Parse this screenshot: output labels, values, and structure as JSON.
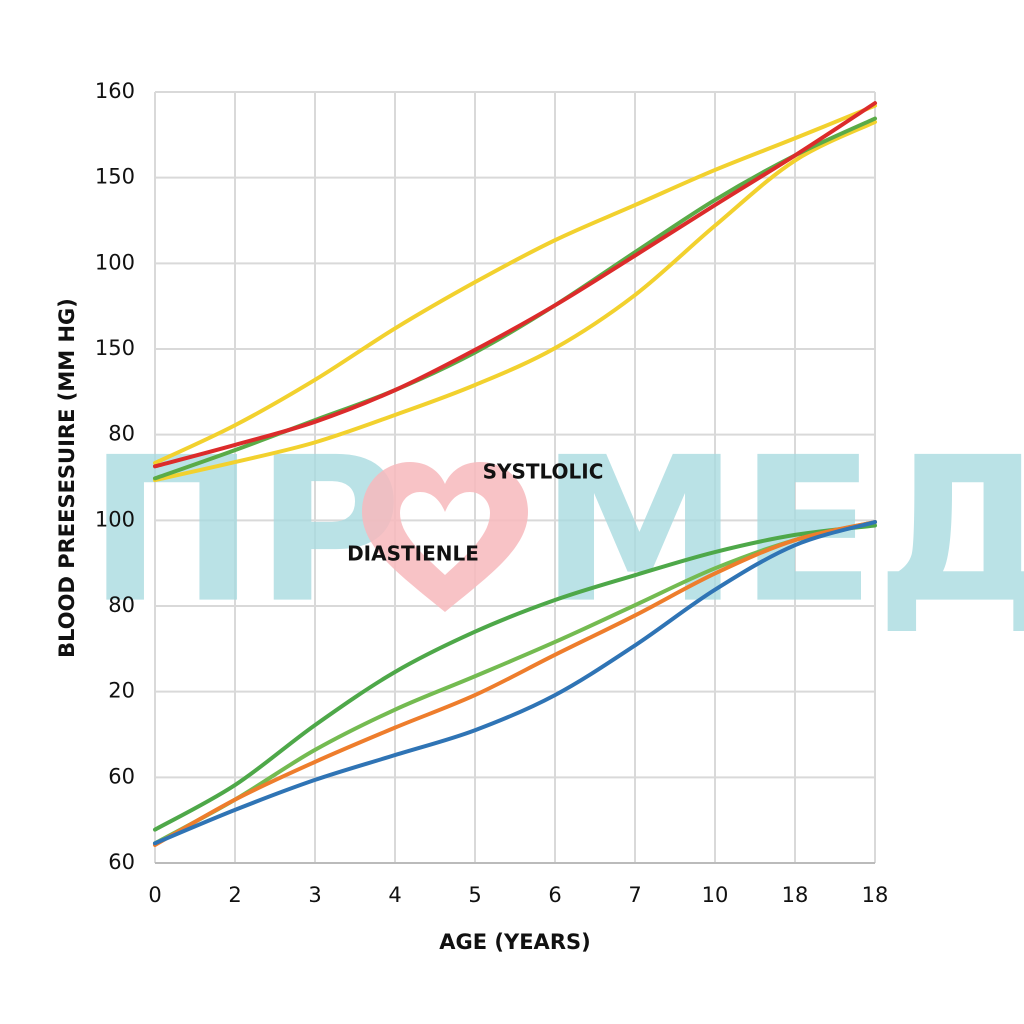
{
  "chart_data": {
    "type": "line",
    "xlabel": "AGE (YEARS)",
    "ylabel": "BLOOD PREESESUIRE (MM HG)",
    "annotations": [
      "SYSTLOLIC",
      "DIASTIENLE"
    ],
    "watermark": [
      "ПР",
      "МЕД"
    ],
    "x": [
      0,
      1,
      2,
      3,
      4,
      5,
      6,
      7,
      8,
      9
    ],
    "xlim": [
      0,
      9
    ],
    "xticks": [
      {
        "value": 0,
        "label": "0"
      },
      {
        "value": 1,
        "label": "2"
      },
      {
        "value": 2,
        "label": "3"
      },
      {
        "value": 3,
        "label": "4"
      },
      {
        "value": 4,
        "label": "5"
      },
      {
        "value": 5,
        "label": "6"
      },
      {
        "value": 6,
        "label": "7"
      },
      {
        "value": 7,
        "label": "10"
      },
      {
        "value": 8,
        "label": "18"
      },
      {
        "value": 9,
        "label": "18"
      }
    ],
    "ylim": [
      0,
      9
    ],
    "yticks": [
      {
        "value": 0,
        "label": "60"
      },
      {
        "value": 1,
        "label": "60"
      },
      {
        "value": 2,
        "label": "20"
      },
      {
        "value": 3,
        "label": "80"
      },
      {
        "value": 4,
        "label": "100"
      },
      {
        "value": 5,
        "label": "80"
      },
      {
        "value": 6,
        "label": "150"
      },
      {
        "value": 7,
        "label": "100"
      },
      {
        "value": 8,
        "label": "150"
      },
      {
        "value": 9,
        "label": "160"
      }
    ],
    "grid": true,
    "series": [
      {
        "color": "#f2d12e",
        "values": [
          4.67,
          5.11,
          5.64,
          6.24,
          6.78,
          7.27,
          7.68,
          8.09,
          8.46,
          8.84
        ]
      },
      {
        "color": "#f2d12e",
        "values": [
          4.47,
          4.68,
          4.91,
          5.23,
          5.58,
          6.01,
          6.63,
          7.44,
          8.2,
          8.65
        ]
      },
      {
        "color": "#5aab47",
        "values": [
          4.49,
          4.82,
          5.17,
          5.52,
          5.96,
          6.51,
          7.13,
          7.74,
          8.26,
          8.69
        ]
      },
      {
        "color": "#dc2b2b",
        "values": [
          4.63,
          4.88,
          5.15,
          5.52,
          5.99,
          6.51,
          7.09,
          7.68,
          8.26,
          8.87
        ]
      },
      {
        "color": "#4ea849",
        "values": [
          0.39,
          0.91,
          1.61,
          2.23,
          2.7,
          3.07,
          3.36,
          3.63,
          3.83,
          3.94
        ]
      },
      {
        "color": "#74bb51",
        "values": [
          0.23,
          0.74,
          1.32,
          1.79,
          2.18,
          2.58,
          3.01,
          3.44,
          3.77,
          3.98
        ]
      },
      {
        "color": "#ee7d2c",
        "values": [
          0.21,
          0.74,
          1.18,
          1.58,
          1.96,
          2.43,
          2.89,
          3.38,
          3.77,
          3.98
        ]
      },
      {
        "color": "#2f74b5",
        "values": [
          0.23,
          0.62,
          0.97,
          1.26,
          1.55,
          1.96,
          2.54,
          3.19,
          3.71,
          3.98
        ]
      }
    ]
  }
}
